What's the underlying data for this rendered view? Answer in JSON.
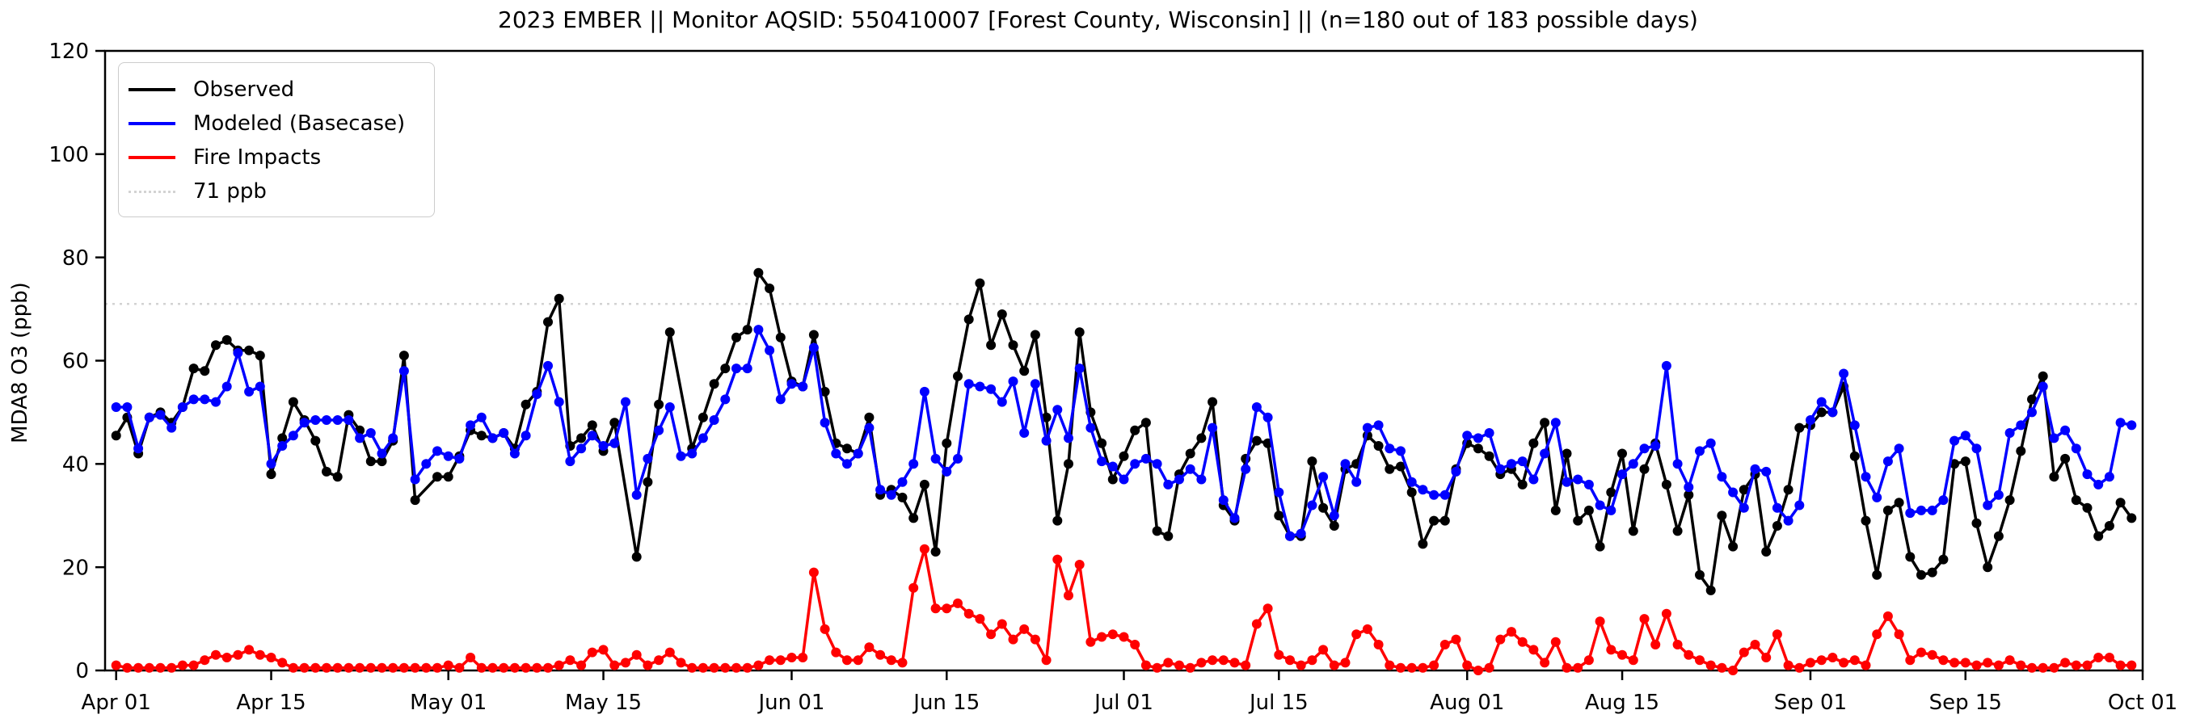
{
  "title": "2023 EMBER || Monitor AQSID: 550410007 [Forest County, Wisconsin] || (n=180 out of 183 possible days)",
  "y_axis": {
    "label": "MDA8 O3 (ppb)",
    "ticks": [
      0,
      20,
      40,
      60,
      80,
      100,
      120
    ]
  },
  "x_axis": {
    "ticks": [
      {
        "label": "Apr 01",
        "day": 1
      },
      {
        "label": "Apr 15",
        "day": 15
      },
      {
        "label": "May 01",
        "day": 31
      },
      {
        "label": "May 15",
        "day": 45
      },
      {
        "label": "Jun 01",
        "day": 62
      },
      {
        "label": "Jun 15",
        "day": 76
      },
      {
        "label": "Jul 01",
        "day": 92
      },
      {
        "label": "Jul 15",
        "day": 106
      },
      {
        "label": "Aug 01",
        "day": 123
      },
      {
        "label": "Aug 15",
        "day": 137
      },
      {
        "label": "Sep 01",
        "day": 154
      },
      {
        "label": "Sep 15",
        "day": 168
      },
      {
        "label": "Oct 01",
        "day": 184
      }
    ]
  },
  "legend": [
    {
      "label": "Observed",
      "color": "#000000",
      "style": "solid"
    },
    {
      "label": "Modeled (Basecase)",
      "color": "#0000ff",
      "style": "solid"
    },
    {
      "label": "Fire Impacts",
      "color": "#ff0000",
      "style": "solid"
    },
    {
      "label": "71 ppb",
      "color": "#d3d3d3",
      "style": "dotted"
    }
  ],
  "chart_data": {
    "type": "line",
    "title": "2023 EMBER || Monitor AQSID: 550410007 [Forest County, Wisconsin] || (n=180 out of 183 possible days)",
    "xlabel": "",
    "ylabel": "MDA8 O3 (ppb)",
    "ylim": [
      0,
      120
    ],
    "xlim_days": [
      0,
      184
    ],
    "start_date": "2023-04-01",
    "end_date": "2023-09-30",
    "n_observed": 180,
    "n_possible": 183,
    "reference_line_ppb": 71,
    "reference_color": "#d3d3d3",
    "grid": false,
    "legend_position": "upper left",
    "series": [
      {
        "name": "Observed",
        "color": "#000000",
        "values": [
          45.5,
          49,
          42,
          49,
          50,
          48,
          51,
          58.5,
          58,
          63,
          64,
          62,
          62,
          61,
          38,
          45,
          52,
          48.5,
          44.5,
          38.5,
          37.5,
          49.5,
          46.5,
          40.5,
          40.5,
          44.5,
          61,
          33,
          null,
          37.5,
          37.5,
          41.5,
          46.5,
          45.5,
          45,
          46,
          43,
          51.5,
          54,
          67.5,
          72,
          43.5,
          45,
          47.5,
          42.5,
          48,
          null,
          22,
          36.5,
          51.5,
          65.5,
          null,
          43,
          49,
          55.5,
          58.5,
          64.5,
          66,
          77,
          74,
          64.5,
          56,
          55,
          65,
          54,
          44,
          43,
          42,
          49,
          34,
          35,
          33.5,
          29.5,
          36,
          23,
          44,
          57,
          68,
          75,
          63,
          69,
          63,
          58,
          65,
          49,
          29,
          40,
          65.5,
          50,
          44,
          37,
          41.5,
          46.5,
          48,
          27,
          26,
          38,
          42,
          45,
          52,
          32,
          29,
          41,
          44.5,
          44,
          30,
          26,
          26,
          40.5,
          31.5,
          28,
          39,
          40,
          45.5,
          43.5,
          39,
          39.5,
          34.5,
          24.5,
          29,
          29,
          39,
          44,
          43,
          41.5,
          38,
          39,
          36,
          44,
          48,
          31,
          42,
          29,
          31,
          24,
          34.5,
          42,
          27,
          39,
          44,
          36,
          27,
          34,
          18.5,
          15.5,
          30,
          24,
          35,
          38,
          23,
          28,
          35,
          47,
          47.5,
          50,
          50,
          55,
          41.5,
          29,
          18.5,
          31,
          32.5,
          22,
          18.5,
          19,
          21.5,
          40,
          40.5,
          28.5,
          20,
          26,
          33,
          42.5,
          52.5,
          57,
          37.5,
          41,
          33,
          31.5,
          26,
          28,
          32.5,
          29.5
        ]
      },
      {
        "name": "Modeled (Basecase)",
        "color": "#0000ff",
        "values": [
          51,
          51,
          43,
          49,
          49.5,
          47,
          51,
          52.5,
          52.5,
          52,
          55,
          61.5,
          54,
          55,
          40,
          43.5,
          45.5,
          48,
          48.5,
          48.5,
          48.5,
          48.5,
          45,
          46,
          42,
          45,
          58,
          37,
          40,
          42.5,
          41.5,
          41,
          47.5,
          49,
          45,
          46,
          42,
          45.5,
          53.5,
          59,
          52,
          40.5,
          43,
          45.5,
          43.5,
          44,
          52,
          34,
          41,
          46.5,
          51,
          41.5,
          42,
          45,
          48.5,
          52.5,
          58.5,
          58.5,
          66,
          62,
          52.5,
          55.5,
          55,
          62.5,
          48,
          42,
          40,
          42,
          47,
          35,
          34,
          36.5,
          40,
          54,
          41,
          38.5,
          41,
          55.5,
          55,
          54.5,
          52,
          56,
          46,
          55.5,
          44.5,
          50.5,
          45,
          58.5,
          47,
          40.5,
          39.5,
          37,
          40,
          41,
          40,
          36,
          37,
          39,
          37,
          47,
          33,
          29.5,
          39,
          51,
          49,
          34.5,
          26,
          26.5,
          32,
          37.5,
          30,
          40,
          36.5,
          47,
          47.5,
          43,
          42.5,
          36.5,
          35,
          34,
          34,
          38.5,
          45.5,
          45,
          46,
          39,
          40,
          40.5,
          37,
          42,
          48,
          36.5,
          37,
          36,
          32,
          31,
          38,
          40,
          43,
          43.5,
          59,
          40,
          35.5,
          42.5,
          44,
          37.5,
          34.5,
          31.5,
          39,
          38.5,
          31.5,
          29,
          32,
          48.5,
          52,
          50,
          57.5,
          47.5,
          37.5,
          33.5,
          40.5,
          43,
          30.5,
          31,
          31,
          33,
          44.5,
          45.5,
          43,
          32,
          34,
          46,
          47.5,
          50,
          55,
          45,
          46.5,
          43,
          38,
          36,
          37.5,
          48,
          47.5
        ]
      },
      {
        "name": "Fire Impacts",
        "color": "#ff0000",
        "values": [
          1,
          0.5,
          0.5,
          0.5,
          0.5,
          0.5,
          1,
          1,
          2,
          3,
          2.5,
          3,
          4,
          3,
          2.5,
          1.5,
          0.5,
          0.5,
          0.5,
          0.5,
          0.5,
          0.5,
          0.5,
          0.5,
          0.5,
          0.5,
          0.5,
          0.5,
          0.5,
          0.5,
          1,
          0.5,
          2.5,
          0.5,
          0.5,
          0.5,
          0.5,
          0.5,
          0.5,
          0.5,
          1,
          2,
          1,
          3.5,
          4,
          1,
          1.5,
          3,
          1,
          2,
          3.5,
          1.5,
          0.5,
          0.5,
          0.5,
          0.5,
          0.5,
          0.5,
          1,
          2,
          2,
          2.5,
          2.5,
          19,
          8,
          3.5,
          2,
          2,
          4.5,
          3,
          2,
          1.5,
          16,
          23.5,
          12,
          12,
          13,
          11,
          10,
          7,
          9,
          6,
          8,
          6,
          2,
          21.5,
          14.5,
          20.5,
          5.5,
          6.5,
          7,
          6.5,
          5,
          1,
          0.5,
          1.5,
          1,
          0.5,
          1.5,
          2,
          2,
          1.5,
          1,
          9,
          12,
          3,
          2,
          1,
          2,
          4,
          1,
          1.5,
          7,
          8,
          5,
          1,
          0.5,
          0.5,
          0.5,
          1,
          5,
          6,
          1,
          0,
          0.5,
          6,
          7.5,
          5.5,
          4,
          1.5,
          5.5,
          0.5,
          0.5,
          2,
          9.5,
          4,
          3,
          2,
          10,
          5,
          11,
          5,
          3,
          2,
          1,
          0.5,
          0,
          3.5,
          5,
          2.5,
          7,
          1,
          0.5,
          1.5,
          2,
          2.5,
          1.5,
          2,
          1,
          7,
          10.5,
          7,
          2,
          3.5,
          3,
          2,
          1.5,
          1.5,
          1,
          1.5,
          1,
          2,
          1,
          0.5,
          0.5,
          0.5,
          1.5,
          1,
          1,
          2.5,
          2.5,
          1,
          1
        ]
      }
    ]
  }
}
